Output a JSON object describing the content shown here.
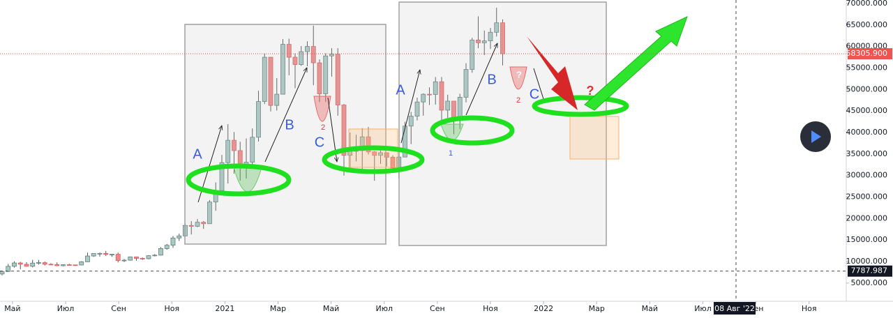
{
  "chart_data": {
    "type": "candlestick",
    "open": [
      7120,
      7700,
      8900,
      9680,
      9380,
      8900,
      9650,
      9760,
      9380,
      9300,
      9040,
      9270,
      9230,
      9200,
      9950,
      11300,
      11880,
      11900,
      11660,
      11700,
      10250,
      10330,
      11080,
      10750,
      10670,
      11370,
      11500,
      13030,
      13800,
      15480,
      15970,
      18400,
      18200,
      19150,
      18800,
      23850,
      26500,
      33000,
      38200,
      35800,
      32250,
      33100,
      38900,
      47200,
      57500,
      46300,
      48900,
      60500,
      57500,
      55800,
      58800,
      60000,
      56200,
      49000,
      57800,
      58200,
      46400,
      34700,
      35700,
      35800,
      39000,
      35500,
      34700,
      35300,
      34250,
      31800,
      34300,
      41500,
      43800,
      47100,
      48900,
      48850,
      51800,
      45200,
      47300,
      43200,
      48200,
      54650,
      61500,
      60850,
      61300,
      63300,
      65500
    ],
    "high": [
      7770,
      9460,
      10060,
      9940,
      9850,
      10400,
      10380,
      10000,
      9620,
      9800,
      9360,
      9480,
      9300,
      10100,
      12100,
      11900,
      12100,
      12480,
      11770,
      12100,
      10600,
      11180,
      11170,
      10950,
      11500,
      11740,
      13350,
      14100,
      15960,
      16480,
      18800,
      19400,
      19900,
      19400,
      24300,
      28400,
      34800,
      41950,
      40100,
      37850,
      38600,
      40950,
      49700,
      58350,
      57550,
      52650,
      61700,
      61800,
      58400,
      60100,
      61200,
      64850,
      57000,
      58400,
      59600,
      59600,
      46600,
      40000,
      39500,
      41000,
      41300,
      35700,
      36600,
      35300,
      34700,
      35400,
      42500,
      44800,
      48100,
      49100,
      50500,
      52900,
      52900,
      48800,
      47300,
      49000,
      56100,
      62000,
      67000,
      63700,
      64300,
      69000,
      66300
    ],
    "low": [
      6800,
      7650,
      8600,
      8200,
      8800,
      8650,
      9300,
      9100,
      9200,
      8950,
      8900,
      9100,
      9000,
      9150,
      9900,
      11100,
      11150,
      11300,
      11100,
      9800,
      9900,
      10200,
      10200,
      10400,
      10530,
      11200,
      11400,
      12760,
      13200,
      14800,
      15800,
      16300,
      18000,
      17600,
      18800,
      21800,
      26000,
      28150,
      30420,
      28800,
      29300,
      32300,
      37900,
      46600,
      44900,
      45100,
      48900,
      53300,
      50300,
      55500,
      55400,
      51000,
      47100,
      47100,
      53000,
      43900,
      30000,
      31300,
      33300,
      31000,
      34900,
      28800,
      32700,
      32100,
      31100,
      29300,
      34300,
      37300,
      42800,
      43900,
      46400,
      46500,
      42800,
      43400,
      39600,
      40800,
      47000,
      53900,
      59600,
      58000,
      59400,
      62300,
      55600
    ],
    "close": [
      7700,
      8900,
      9680,
      9380,
      8900,
      9650,
      9760,
      9380,
      9300,
      9040,
      9270,
      9230,
      9200,
      9950,
      11300,
      11880,
      11900,
      11660,
      11700,
      10250,
      10330,
      11080,
      10750,
      10670,
      11370,
      11500,
      13030,
      13800,
      15480,
      15970,
      18400,
      18200,
      19150,
      18800,
      23850,
      26500,
      33000,
      38200,
      35800,
      32250,
      33100,
      38900,
      47200,
      57500,
      46300,
      48900,
      60500,
      57500,
      55800,
      58800,
      60000,
      56200,
      49000,
      57800,
      58200,
      46400,
      34700,
      35700,
      35800,
      39000,
      35500,
      34700,
      35300,
      34250,
      31800,
      34300,
      41500,
      43800,
      47100,
      48900,
      48850,
      51800,
      45200,
      47300,
      43200,
      48200,
      54650,
      61500,
      60850,
      61300,
      63300,
      65500,
      58305.9
    ],
    "up_color": "#a9c9c4",
    "down_color": "#ef8a8a",
    "ylim": [
      1100,
      70800
    ],
    "yticks": [
      {
        "value": 5000,
        "label": "5000.000"
      },
      {
        "value": 10000,
        "label": "10000.000"
      },
      {
        "value": 15000,
        "label": "15000.000"
      },
      {
        "value": 20000,
        "label": "20000.000"
      },
      {
        "value": 25000,
        "label": "25000.000"
      },
      {
        "value": 30000,
        "label": "30000.000"
      },
      {
        "value": 35000,
        "label": "35000.000"
      },
      {
        "value": 40000,
        "label": "40000.000"
      },
      {
        "value": 45000,
        "label": "45000.000"
      },
      {
        "value": 50000,
        "label": "50000.000"
      },
      {
        "value": 55000,
        "label": "55000.000"
      },
      {
        "value": 60000,
        "label": "60000.000"
      },
      {
        "value": 65000,
        "label": "65000.000"
      },
      {
        "value": 70000,
        "label": "70000.000"
      }
    ],
    "xlim": [
      3.53,
      35.4
    ],
    "xticks": [
      {
        "value": 4,
        "label": "Май"
      },
      {
        "value": 6,
        "label": "Июл"
      },
      {
        "value": 8,
        "label": "Сен"
      },
      {
        "value": 10,
        "label": "Ноя"
      },
      {
        "value": 12,
        "label": "2021"
      },
      {
        "value": 14,
        "label": "Мар"
      },
      {
        "value": 16,
        "label": "Май"
      },
      {
        "value": 18,
        "label": "Июл"
      },
      {
        "value": 20,
        "label": "Сен"
      },
      {
        "value": 22,
        "label": "Ноя"
      },
      {
        "value": 24,
        "label": "2022"
      },
      {
        "value": 26,
        "label": "Мар"
      },
      {
        "value": 28,
        "label": "Май"
      },
      {
        "value": 30,
        "label": "Июл"
      },
      {
        "value": 32,
        "label": "Сен"
      },
      {
        "value": 34,
        "label": "Ноя"
      }
    ],
    "last_price": {
      "value": 58305.9,
      "label": "58305.900"
    },
    "cursor_price": {
      "value": 7787.987,
      "label": "7787.987"
    },
    "cursor_date": "08 Авг '22",
    "annotations": [
      "A",
      "B",
      "C",
      "2",
      "A",
      "B",
      "C",
      "1",
      "?",
      "2",
      "?"
    ]
  }
}
